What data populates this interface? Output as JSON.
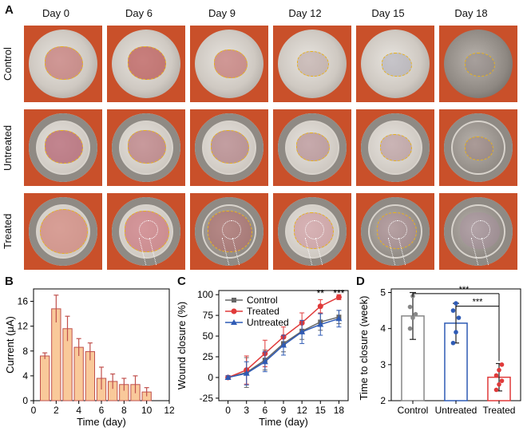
{
  "panel_a": {
    "label": "A",
    "days": [
      "Day 0",
      "Day 6",
      "Day 9",
      "Day 12",
      "Day 15",
      "Day 18"
    ],
    "rows": [
      "Control",
      "Untreated",
      "Treated"
    ]
  },
  "panel_b": {
    "label": "B"
  },
  "panel_c": {
    "label": "C"
  },
  "panel_d": {
    "label": "D"
  },
  "chart_data": [
    {
      "id": "B",
      "type": "bar",
      "xlabel": "Time (day)",
      "ylabel": "Current (μA)",
      "x": [
        1,
        2,
        3,
        4,
        5,
        6,
        7,
        8,
        9,
        10
      ],
      "values": [
        7.2,
        14.8,
        11.6,
        8.6,
        7.9,
        3.6,
        3.1,
        2.6,
        2.6,
        1.4
      ],
      "errors": [
        0.5,
        2.2,
        2.0,
        1.4,
        1.4,
        1.8,
        1.2,
        1.0,
        1.4,
        0.7
      ],
      "xlim": [
        0,
        12
      ],
      "ylim": [
        0,
        18
      ],
      "xticks": [
        "0",
        "2",
        "4",
        "6",
        "8",
        "10",
        "12"
      ],
      "yticks": [
        "0",
        "4",
        "8",
        "12",
        "16"
      ],
      "bar_color": "#f9c99a",
      "edge_color": "#c0504d"
    },
    {
      "id": "C",
      "type": "line",
      "xlabel": "Time (day)",
      "ylabel": "Wound closure (%)",
      "x": [
        0,
        3,
        6,
        9,
        12,
        15,
        18
      ],
      "xlim": [
        -1.5,
        19.5
      ],
      "ylim": [
        -28,
        105
      ],
      "xticks": [
        "0",
        "3",
        "6",
        "9",
        "12",
        "15",
        "18"
      ],
      "yticks": [
        "-25",
        "0",
        "25",
        "50",
        "75",
        "100"
      ],
      "series": [
        {
          "name": "Control",
          "color": "#666666",
          "marker": "square",
          "values": [
            0,
            6,
            21,
            41,
            56,
            67,
            73
          ],
          "errors": [
            2,
            18,
            12,
            10,
            10,
            10,
            8
          ]
        },
        {
          "name": "Treated",
          "color": "#e03a3a",
          "marker": "circle",
          "values": [
            0,
            9,
            29,
            49,
            66,
            86,
            97
          ],
          "errors": [
            2,
            17,
            16,
            12,
            12,
            8,
            3
          ]
        },
        {
          "name": "Untreated",
          "color": "#2f5bb5",
          "marker": "triangle",
          "values": [
            0,
            5,
            19,
            39,
            55,
            64,
            71
          ],
          "errors": [
            2,
            14,
            12,
            12,
            14,
            13,
            10
          ]
        }
      ],
      "annotations": [
        {
          "x": 15,
          "text": "**"
        },
        {
          "x": 18,
          "text": "***"
        }
      ]
    },
    {
      "id": "D",
      "type": "bar",
      "xlabel": "",
      "ylabel": "Time to closure (week)",
      "categories": [
        "Control",
        "Untreated",
        "Treated"
      ],
      "values": [
        4.35,
        4.15,
        2.65
      ],
      "errors": [
        0.65,
        0.55,
        0.38
      ],
      "points": [
        [
          4.0,
          4.3,
          4.4,
          4.6,
          4.9
        ],
        [
          3.6,
          3.9,
          4.3,
          4.5,
          4.7
        ],
        [
          2.3,
          2.45,
          2.55,
          2.7,
          2.85,
          3.0
        ]
      ],
      "colors": [
        "#888888",
        "#2f5bb5",
        "#e03a3a"
      ],
      "ylim": [
        2,
        5.1
      ],
      "yticks": [
        "2",
        "3",
        "4",
        "5"
      ],
      "significance": [
        {
          "from": "Control",
          "to": "Treated",
          "text": "***"
        },
        {
          "from": "Untreated",
          "to": "Treated",
          "text": "***"
        }
      ]
    }
  ]
}
